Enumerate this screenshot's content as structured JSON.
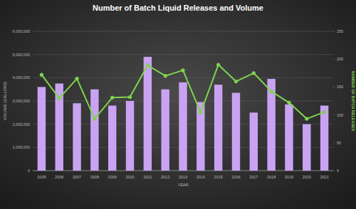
{
  "chart_data": {
    "type": "bar",
    "title": "Number of Batch Liquid Releases and Volume",
    "x_label": "YEAR",
    "y_label": "VOLUME (GALLONS)",
    "y2_label": "NUMBER OF BATCH RELEASES",
    "categories": [
      "2005",
      "2006",
      "2007",
      "2008",
      "2009",
      "2010",
      "2011",
      "2012",
      "2013",
      "2014",
      "2015",
      "2016",
      "2017",
      "2018",
      "2019",
      "2020",
      "2021"
    ],
    "series": [
      {
        "type": "bar",
        "color": "#c9a3f2",
        "values": [
          3600000,
          3750000,
          2900000,
          3500000,
          2800000,
          3000000,
          4900000,
          3500000,
          3800000,
          2950000,
          3700000,
          3350000,
          2500000,
          3950000,
          2850000,
          2000000,
          2800000
        ]
      },
      {
        "type": "line",
        "axis": "y2",
        "color": "#7fd34e",
        "marker": "circle",
        "values": [
          172,
          130,
          165,
          93,
          131,
          132,
          189,
          170,
          180,
          104,
          190,
          160,
          175,
          142,
          122,
          93,
          105
        ]
      }
    ],
    "ylim": [
      0,
      6000000
    ],
    "yticks": [
      0,
      {
        "value": 1000000,
        "label": "1,000,000"
      },
      {
        "value": 2000000,
        "label": "2,000,000"
      },
      {
        "value": 3000000,
        "label": "3,000,000"
      },
      {
        "value": 4000000,
        "label": "4,000,000"
      },
      {
        "value": 5000000,
        "label": "5,000,000"
      },
      {
        "value": 6000000,
        "label": "6,000,000"
      }
    ],
    "y2lim": [
      0,
      250
    ],
    "y2ticks": [
      0,
      50,
      100,
      150,
      200,
      250
    ],
    "grid": true
  }
}
